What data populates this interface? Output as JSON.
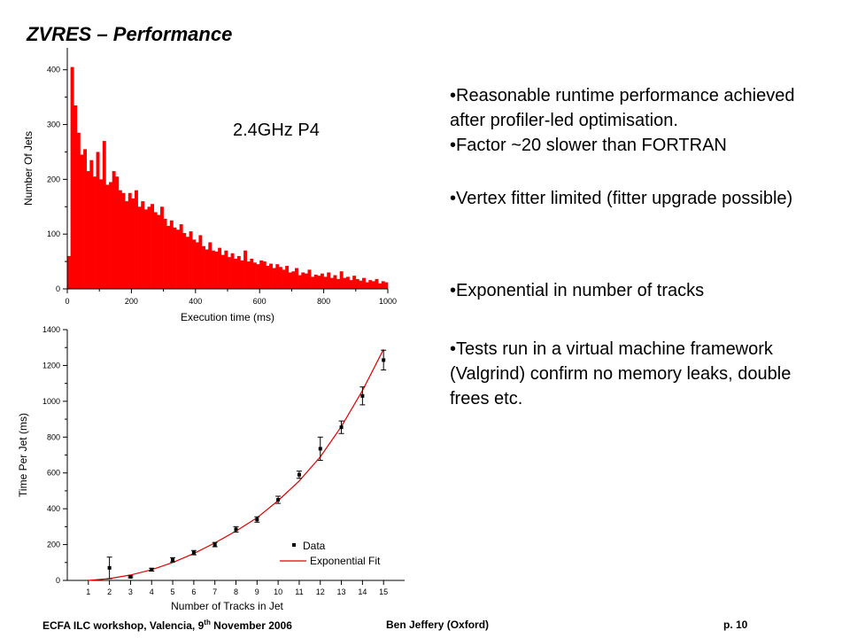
{
  "slide": {
    "title": "ZVRES – Performance",
    "bullets": [
      "•Reasonable runtime performance achieved after profiler-led optimisation.",
      "•Factor ~20 slower than FORTRAN",
      "•Vertex fitter limited (fitter upgrade possible)",
      "•Exponential in number of tracks",
      "•Tests run in a virtual machine framework (Valgrind) confirm no memory leaks, double frees etc."
    ],
    "footer": {
      "left_pre": "ECFA ILC workshop, Valencia, 9",
      "left_sup": "th",
      "left_post": " November  2006",
      "center": "Ben Jeffery (Oxford)",
      "right": "p. 10"
    }
  },
  "chart_data": [
    {
      "type": "bar",
      "title": "",
      "xlabel": "Execution time (ms)",
      "ylabel": "Number Of Jets",
      "xlim": [
        0,
        1000
      ],
      "ylim": [
        0,
        440
      ],
      "xticks": [
        0,
        200,
        400,
        600,
        800,
        1000
      ],
      "yticks": [
        0,
        100,
        200,
        300,
        400
      ],
      "annotation": "2.4GHz P4",
      "color": "#ff0000",
      "bin_width": 10,
      "values": [
        60,
        405,
        335,
        285,
        245,
        255,
        215,
        235,
        205,
        250,
        200,
        270,
        190,
        195,
        215,
        205,
        180,
        175,
        160,
        175,
        165,
        180,
        150,
        160,
        145,
        150,
        155,
        140,
        135,
        150,
        128,
        115,
        125,
        112,
        108,
        118,
        102,
        95,
        105,
        90,
        85,
        98,
        78,
        72,
        85,
        70,
        68,
        75,
        62,
        70,
        58,
        65,
        55,
        60,
        52,
        70,
        50,
        55,
        48,
        45,
        52,
        50,
        42,
        46,
        38,
        45,
        40,
        35,
        42,
        30,
        32,
        38,
        25,
        30,
        28,
        35,
        22,
        26,
        24,
        28,
        22,
        30,
        20,
        25,
        18,
        32,
        20,
        22,
        16,
        24,
        18,
        15,
        20,
        12,
        16,
        14,
        18,
        10,
        14,
        12
      ]
    },
    {
      "type": "scatter",
      "title": "",
      "xlabel": "Number of Tracks in Jet",
      "ylabel": "Time Per Jet (ms)",
      "xlim": [
        0,
        16
      ],
      "ylim": [
        0,
        1400
      ],
      "xticks": [
        1,
        2,
        3,
        4,
        5,
        6,
        7,
        8,
        9,
        10,
        11,
        12,
        13,
        14,
        15
      ],
      "yticks": [
        0,
        200,
        400,
        600,
        800,
        1000,
        1200,
        1400
      ],
      "legend": [
        "Data",
        "Exponential Fit"
      ],
      "legend_position": "bottom-right",
      "points": [
        {
          "x": 2,
          "y": 70,
          "err": 60
        },
        {
          "x": 3,
          "y": 20,
          "err": 5
        },
        {
          "x": 4,
          "y": 60,
          "err": 8
        },
        {
          "x": 5,
          "y": 115,
          "err": 12
        },
        {
          "x": 6,
          "y": 155,
          "err": 12
        },
        {
          "x": 7,
          "y": 200,
          "err": 12
        },
        {
          "x": 8,
          "y": 285,
          "err": 15
        },
        {
          "x": 9,
          "y": 340,
          "err": 15
        },
        {
          "x": 10,
          "y": 450,
          "err": 20
        },
        {
          "x": 11,
          "y": 590,
          "err": 20
        },
        {
          "x": 12,
          "y": 735,
          "err": 65
        },
        {
          "x": 13,
          "y": 855,
          "err": 35
        },
        {
          "x": 14,
          "y": 1030,
          "err": 50
        },
        {
          "x": 15,
          "y": 1230,
          "err": 55
        }
      ],
      "fit": {
        "name": "Exponential Fit",
        "color": "#e00000",
        "x": [
          1,
          2,
          3,
          4,
          5,
          6,
          7,
          8,
          9,
          10,
          11,
          12,
          13,
          14,
          15
        ],
        "y": [
          0,
          10,
          30,
          60,
          100,
          150,
          210,
          275,
          350,
          445,
          555,
          690,
          860,
          1060,
          1290
        ]
      }
    }
  ]
}
